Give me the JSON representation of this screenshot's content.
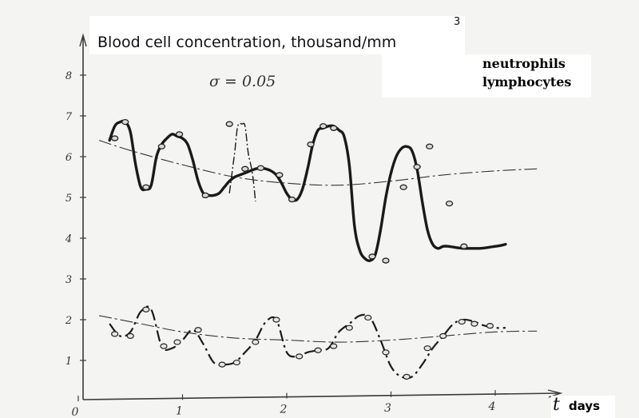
{
  "chart_data": {
    "type": "line",
    "title": "Blood cell concentration, thousand/mm",
    "title_superscript": "3",
    "annotation": "σ = 0.05",
    "xlabel": "days",
    "x_symbol": "t",
    "xlim": [
      0,
      4.5
    ],
    "ylim": [
      0,
      8.8
    ],
    "x_ticks": [
      "0",
      "1",
      "2",
      "3",
      "4"
    ],
    "y_ticks": [
      "1",
      "2",
      "3",
      "4",
      "5",
      "6",
      "7",
      "8"
    ],
    "legend": {
      "position": "top-right",
      "entries": [
        "neutrophils",
        "lymphocytes"
      ]
    },
    "series": [
      {
        "name": "neutrophils",
        "curve_x": [
          0.3,
          0.35,
          0.4,
          0.45,
          0.5,
          0.55,
          0.6,
          0.65,
          0.7,
          0.75,
          0.8,
          0.85,
          0.9,
          0.95,
          1.0,
          1.05,
          1.1,
          1.15,
          1.2,
          1.25,
          1.3,
          1.35,
          1.4,
          1.45,
          1.5,
          1.55,
          1.6,
          1.65,
          1.7,
          1.75,
          1.8,
          1.85,
          1.9,
          1.95,
          2.0,
          2.05,
          2.1,
          2.15,
          2.2,
          2.25,
          2.3,
          2.35,
          2.4,
          2.45,
          2.5,
          2.55,
          2.6,
          2.65,
          2.7,
          2.75,
          2.8,
          2.85,
          2.9,
          2.95,
          3.0,
          3.05,
          3.1,
          3.15,
          3.2,
          3.25,
          3.3,
          3.35,
          3.4,
          3.45,
          3.5,
          3.55,
          3.6,
          3.65,
          3.7,
          3.75,
          3.8,
          3.85,
          3.9,
          3.95,
          4.0,
          4.05,
          4.1
        ],
        "curve_y": [
          6.4,
          6.75,
          6.85,
          6.85,
          6.6,
          5.8,
          5.25,
          5.2,
          5.3,
          6.0,
          6.3,
          6.45,
          6.55,
          6.5,
          6.45,
          6.3,
          5.9,
          5.4,
          5.1,
          5.05,
          5.05,
          5.1,
          5.25,
          5.4,
          5.5,
          5.55,
          5.6,
          5.65,
          5.7,
          5.72,
          5.7,
          5.65,
          5.55,
          5.35,
          5.1,
          4.95,
          4.95,
          5.2,
          5.7,
          6.3,
          6.65,
          6.7,
          6.75,
          6.75,
          6.65,
          6.5,
          5.8,
          4.3,
          3.7,
          3.5,
          3.45,
          3.6,
          4.2,
          5.0,
          5.6,
          6.0,
          6.2,
          6.25,
          6.15,
          5.7,
          4.9,
          4.2,
          3.85,
          3.75,
          3.8,
          3.8,
          3.78,
          3.76,
          3.75,
          3.75,
          3.75,
          3.75,
          3.76,
          3.78,
          3.8,
          3.82,
          3.85
        ],
        "spike_x": [
          1.45,
          1.5,
          1.53,
          1.57,
          1.6,
          1.63,
          1.67,
          1.7
        ],
        "spike_y": [
          5.1,
          6.1,
          6.75,
          6.8,
          6.75,
          6.1,
          5.6,
          4.9
        ],
        "markers_x": [
          0.35,
          0.45,
          0.65,
          0.8,
          0.97,
          1.22,
          1.45,
          1.6,
          1.75,
          1.93,
          2.05,
          2.23,
          2.35,
          2.45,
          2.82,
          2.95,
          3.12,
          3.25,
          3.37,
          3.56,
          3.7
        ],
        "markers_y": [
          6.45,
          6.85,
          5.25,
          6.25,
          6.55,
          5.05,
          6.8,
          5.7,
          5.72,
          5.55,
          4.95,
          6.3,
          6.75,
          6.7,
          3.55,
          3.45,
          5.25,
          5.75,
          6.25,
          4.85,
          3.8
        ],
        "trend_x": [
          0.2,
          0.5,
          1.0,
          1.5,
          2.0,
          2.5,
          3.0,
          3.5,
          4.0,
          4.4
        ],
        "trend_y": [
          6.4,
          6.15,
          5.8,
          5.5,
          5.35,
          5.3,
          5.4,
          5.55,
          5.65,
          5.7
        ]
      },
      {
        "name": "lymphocytes",
        "curve_x": [
          0.3,
          0.4,
          0.5,
          0.6,
          0.7,
          0.8,
          0.9,
          1.0,
          1.1,
          1.2,
          1.3,
          1.4,
          1.5,
          1.6,
          1.7,
          1.8,
          1.9,
          2.0,
          2.1,
          2.2,
          2.3,
          2.4,
          2.5,
          2.6,
          2.7,
          2.8,
          2.9,
          3.0,
          3.1,
          3.2,
          3.3,
          3.4,
          3.5,
          3.6,
          3.7,
          3.8,
          3.9,
          4.0,
          4.1
        ],
        "curve_y": [
          1.9,
          1.6,
          1.7,
          2.2,
          2.25,
          1.35,
          1.3,
          1.5,
          1.75,
          1.4,
          0.95,
          0.9,
          0.95,
          1.2,
          1.5,
          1.95,
          2.0,
          1.2,
          1.1,
          1.2,
          1.25,
          1.3,
          1.7,
          1.9,
          2.1,
          2.05,
          1.5,
          0.85,
          0.6,
          0.6,
          0.9,
          1.3,
          1.6,
          1.9,
          2.0,
          1.95,
          1.85,
          1.8,
          1.8
        ],
        "markers_x": [
          0.35,
          0.5,
          0.65,
          0.82,
          0.95,
          1.15,
          1.38,
          1.52,
          1.7,
          1.9,
          2.12,
          2.3,
          2.45,
          2.6,
          2.78,
          2.95,
          3.15,
          3.35,
          3.5,
          3.68,
          3.8,
          3.95
        ],
        "markers_y": [
          1.65,
          1.6,
          2.25,
          1.35,
          1.45,
          1.75,
          0.9,
          0.95,
          1.45,
          2.0,
          1.1,
          1.25,
          1.35,
          1.8,
          2.05,
          1.2,
          0.6,
          1.3,
          1.6,
          1.95,
          1.9,
          1.85
        ],
        "trend_x": [
          0.2,
          0.6,
          1.0,
          1.5,
          2.0,
          2.5,
          3.0,
          3.5,
          4.0,
          4.4
        ],
        "trend_y": [
          2.1,
          1.9,
          1.7,
          1.55,
          1.5,
          1.45,
          1.5,
          1.6,
          1.7,
          1.72
        ]
      }
    ]
  }
}
